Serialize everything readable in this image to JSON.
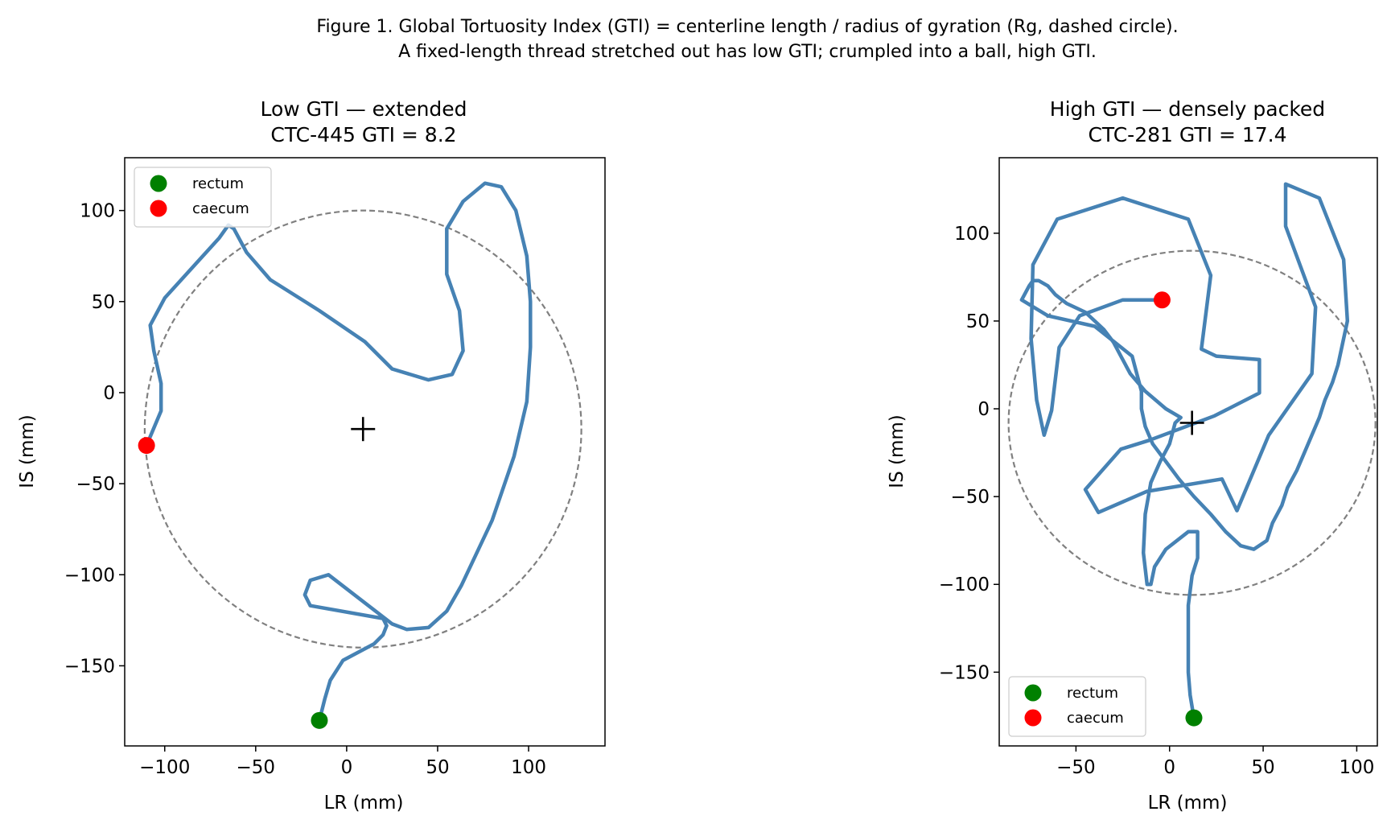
{
  "figure": {
    "caption_line1": "Figure 1.  Global Tortuosity Index (GTI) = centerline length / radius of gyration (Rg, dashed circle).",
    "caption_line2": "A fixed-length thread stretched out has low GTI; crumpled into a ball, high GTI."
  },
  "colors": {
    "centerline": "#4682b4",
    "rg_circle": "#808080",
    "rectum": "#008000",
    "caecum": "#ff0000",
    "centroid": "#000000"
  },
  "chart_data": [
    {
      "type": "line",
      "title_line1": "Low GTI — extended",
      "title_line2": "CTC-445   GTI = 8.2",
      "xlabel": "LR (mm)",
      "ylabel": "IS (mm)",
      "xlim": [
        -122,
        142
      ],
      "ylim": [
        -194,
        129
      ],
      "xticks": [
        -100,
        -50,
        0,
        50,
        100
      ],
      "xtick_labels": [
        "−100",
        "−50",
        "0",
        "50",
        "100"
      ],
      "yticks": [
        100,
        50,
        0,
        -50,
        -100,
        -150
      ],
      "ytick_labels": [
        "100",
        "50",
        "0",
        "−50",
        "−100",
        "−150"
      ],
      "grid": false,
      "legend_position": "upper-left",
      "legend": [
        {
          "label": "rectum",
          "marker": "rectum"
        },
        {
          "label": "caecum",
          "marker": "caecum"
        }
      ],
      "centroid": [
        9,
        -20
      ],
      "rg_radius": 120,
      "centerline": [
        [
          -15,
          -180
        ],
        [
          -12,
          -168
        ],
        [
          -9,
          -158
        ],
        [
          -2,
          -147
        ],
        [
          15,
          -138
        ],
        [
          20,
          -133
        ],
        [
          22,
          -128
        ],
        [
          20,
          -124
        ],
        [
          -20,
          -117
        ],
        [
          -23,
          -111
        ],
        [
          -20,
          -103
        ],
        [
          -10,
          -100
        ],
        [
          25,
          -127
        ],
        [
          33,
          -130
        ],
        [
          45,
          -129
        ],
        [
          55,
          -120
        ],
        [
          63,
          -106
        ],
        [
          80,
          -70
        ],
        [
          92,
          -35
        ],
        [
          99,
          -5
        ],
        [
          101,
          25
        ],
        [
          101,
          50
        ],
        [
          99,
          75
        ],
        [
          93,
          100
        ],
        [
          85,
          113
        ],
        [
          76,
          115
        ],
        [
          64,
          105
        ],
        [
          55,
          90
        ],
        [
          55,
          65
        ],
        [
          62,
          45
        ],
        [
          64,
          23
        ],
        [
          58,
          10
        ],
        [
          45,
          7
        ],
        [
          25,
          13
        ],
        [
          10,
          28
        ],
        [
          -15,
          45
        ],
        [
          -42,
          62
        ],
        [
          -55,
          77
        ],
        [
          -62,
          90
        ],
        [
          -65,
          92
        ],
        [
          -70,
          85
        ],
        [
          -100,
          52
        ],
        [
          -108,
          37
        ],
        [
          -106,
          23
        ],
        [
          -102,
          5
        ],
        [
          -102,
          -10
        ],
        [
          -110,
          -29
        ]
      ],
      "rectum": [
        -15,
        -180
      ],
      "caecum": [
        -110,
        -29
      ]
    },
    {
      "type": "line",
      "title_line1": "High GTI — densely packed",
      "title_line2": "CTC-281   GTI = 17.4",
      "xlabel": "LR (mm)",
      "ylabel": "IS (mm)",
      "xlim": [
        -91,
        111
      ],
      "ylim": [
        -192,
        143
      ],
      "xticks": [
        -50,
        0,
        50,
        100
      ],
      "xtick_labels": [
        "−50",
        "0",
        "50",
        "100"
      ],
      "yticks": [
        100,
        50,
        0,
        -50,
        -100,
        -150
      ],
      "ytick_labels": [
        "100",
        "50",
        "0",
        "−50",
        "−100",
        "−150"
      ],
      "grid": false,
      "legend_position": "lower-left",
      "legend": [
        {
          "label": "rectum",
          "marker": "rectum"
        },
        {
          "label": "caecum",
          "marker": "caecum"
        }
      ],
      "centroid": [
        12,
        -8
      ],
      "rg_radius": 98,
      "centerline": [
        [
          13,
          -176
        ],
        [
          11,
          -163
        ],
        [
          10,
          -150
        ],
        [
          10,
          -145
        ],
        [
          10,
          -112
        ],
        [
          12,
          -95
        ],
        [
          15,
          -85
        ],
        [
          15,
          -70
        ],
        [
          10,
          -70
        ],
        [
          -2,
          -80
        ],
        [
          -8,
          -90
        ],
        [
          -10,
          -100
        ],
        [
          -12,
          -100
        ],
        [
          -14,
          -82
        ],
        [
          -13,
          -60
        ],
        [
          -10,
          -42
        ],
        [
          -5,
          -30
        ],
        [
          0,
          -20
        ],
        [
          3,
          -8
        ],
        [
          6,
          -5
        ],
        [
          -2,
          0
        ],
        [
          -13,
          10
        ],
        [
          -21,
          20
        ],
        [
          -26,
          30
        ],
        [
          -30,
          38
        ],
        [
          -35,
          45
        ],
        [
          -40,
          50
        ],
        [
          -45,
          55
        ],
        [
          -55,
          60
        ],
        [
          -61,
          65
        ],
        [
          -65,
          70
        ],
        [
          -70,
          73
        ],
        [
          -73,
          73
        ],
        [
          -75,
          70
        ],
        [
          -79,
          62
        ],
        [
          -65,
          53
        ],
        [
          -40,
          47
        ],
        [
          -20,
          30
        ],
        [
          -15,
          10
        ],
        [
          -15,
          0
        ],
        [
          -13,
          -10
        ],
        [
          -9,
          -20
        ],
        [
          -2,
          -30
        ],
        [
          5,
          -40
        ],
        [
          13,
          -50
        ],
        [
          22,
          -60
        ],
        [
          30,
          -70
        ],
        [
          38,
          -78
        ],
        [
          45,
          -80
        ],
        [
          52,
          -75
        ],
        [
          55,
          -65
        ],
        [
          60,
          -55
        ],
        [
          63,
          -45
        ],
        [
          68,
          -35
        ],
        [
          72,
          -25
        ],
        [
          76,
          -15
        ],
        [
          80,
          -5
        ],
        [
          83,
          5
        ],
        [
          87,
          15
        ],
        [
          90,
          25
        ],
        [
          95,
          50
        ],
        [
          93,
          85
        ],
        [
          80,
          120
        ],
        [
          62,
          128
        ],
        [
          62,
          104
        ],
        [
          78,
          58
        ],
        [
          76,
          20
        ],
        [
          53,
          -15
        ],
        [
          36,
          -58
        ],
        [
          28,
          -40
        ],
        [
          -12,
          -47
        ],
        [
          -38,
          -59
        ],
        [
          -45,
          -46
        ],
        [
          -26,
          -23
        ],
        [
          -11,
          -18
        ],
        [
          24,
          -4
        ],
        [
          48,
          9
        ],
        [
          48,
          28
        ],
        [
          25,
          30
        ],
        [
          17,
          34
        ],
        [
          22,
          76
        ],
        [
          10,
          108
        ],
        [
          -25,
          120
        ],
        [
          -60,
          108
        ],
        [
          -73,
          82
        ],
        [
          -74,
          40
        ],
        [
          -71,
          5
        ],
        [
          -67,
          -15
        ],
        [
          -63,
          -1
        ],
        [
          -59,
          35
        ],
        [
          -48,
          53
        ],
        [
          -25,
          62
        ],
        [
          -4,
          62
        ]
      ],
      "rectum": [
        13,
        -176
      ],
      "caecum": [
        -4,
        62
      ]
    }
  ]
}
